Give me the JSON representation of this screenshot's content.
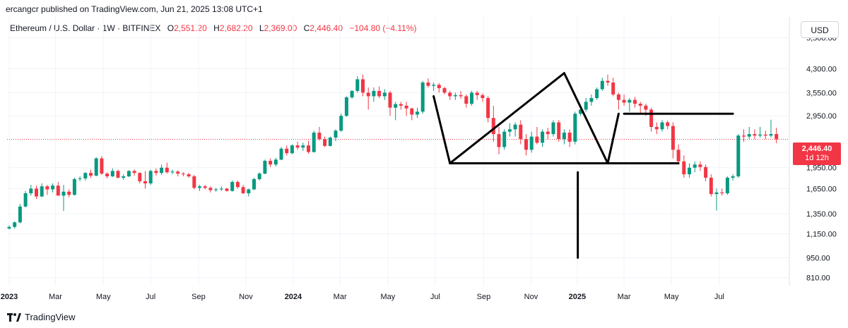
{
  "header": {
    "publisher_text": "ercangcr published on TradingView.com, Jun 21, 2025 13:08 UTC+1"
  },
  "legend": {
    "symbol": "Ethereum / U.S. Dollar · 1W · BITFINEX",
    "o_label": "O",
    "o_value": "2,551.20",
    "h_label": "H",
    "h_value": "2,682.20",
    "l_label": "L",
    "l_value": "2,369.00",
    "c_label": "C",
    "c_value": "2,446.40",
    "change": "−104.80 (−4.11%)"
  },
  "price_scale": {
    "currency": "USD",
    "last_price": "2,446.40",
    "countdown": "1d 12h"
  },
  "brand": {
    "name": "TradingView"
  },
  "colors": {
    "up": "#089981",
    "down": "#f23645",
    "drawing": "#000000",
    "grid": "#f0f3fa"
  },
  "chart_data": {
    "type": "candlestick",
    "scale": "log",
    "ylim": [
      760,
      6500
    ],
    "y_ticks": [
      {
        "value": 5500,
        "label": "5,500.00"
      },
      {
        "value": 4300,
        "label": "4,300.00"
      },
      {
        "value": 3550,
        "label": "3,550.00"
      },
      {
        "value": 2950,
        "label": "2,950.00"
      },
      {
        "value": 1950,
        "label": "1,950.00"
      },
      {
        "value": 1650,
        "label": "1,650.00"
      },
      {
        "value": 1350,
        "label": "1,350.00"
      },
      {
        "value": 1150,
        "label": "1,150.00"
      },
      {
        "value": 950,
        "label": "950.00"
      },
      {
        "value": 810,
        "label": "810.00"
      }
    ],
    "x_ticks": [
      {
        "label": "2023",
        "bold": true,
        "week": 0
      },
      {
        "label": "Mar",
        "bold": false,
        "week": 8.5
      },
      {
        "label": "May",
        "bold": false,
        "week": 17.3
      },
      {
        "label": "Jul",
        "bold": false,
        "week": 26
      },
      {
        "label": "Sep",
        "bold": false,
        "week": 34.8
      },
      {
        "label": "Nov",
        "bold": false,
        "week": 43.5
      },
      {
        "label": "2024",
        "bold": true,
        "week": 52.2
      },
      {
        "label": "Mar",
        "bold": false,
        "week": 60.8
      },
      {
        "label": "May",
        "bold": false,
        "week": 69.6
      },
      {
        "label": "Jul",
        "bold": false,
        "week": 78.3
      },
      {
        "label": "Sep",
        "bold": false,
        "week": 87.2
      },
      {
        "label": "Nov",
        "bold": false,
        "week": 95.9
      },
      {
        "label": "2025",
        "bold": true,
        "week": 104.4
      },
      {
        "label": "Mar",
        "bold": false,
        "week": 113
      },
      {
        "label": "May",
        "bold": false,
        "week": 121.7
      },
      {
        "label": "Jul",
        "bold": false,
        "week": 130.5
      }
    ],
    "last_price": 2446.4,
    "candles": [
      {
        "o": 1200,
        "h": 1230,
        "l": 1190,
        "c": 1215
      },
      {
        "o": 1215,
        "h": 1270,
        "l": 1200,
        "c": 1260
      },
      {
        "o": 1260,
        "h": 1460,
        "l": 1250,
        "c": 1430
      },
      {
        "o": 1430,
        "h": 1620,
        "l": 1420,
        "c": 1590
      },
      {
        "o": 1590,
        "h": 1700,
        "l": 1560,
        "c": 1650
      },
      {
        "o": 1650,
        "h": 1690,
        "l": 1520,
        "c": 1550
      },
      {
        "o": 1550,
        "h": 1720,
        "l": 1540,
        "c": 1680
      },
      {
        "o": 1680,
        "h": 1700,
        "l": 1570,
        "c": 1640
      },
      {
        "o": 1640,
        "h": 1720,
        "l": 1600,
        "c": 1690
      },
      {
        "o": 1690,
        "h": 1740,
        "l": 1560,
        "c": 1560
      },
      {
        "o": 1560,
        "h": 1700,
        "l": 1380,
        "c": 1610
      },
      {
        "o": 1610,
        "h": 1640,
        "l": 1540,
        "c": 1570
      },
      {
        "o": 1570,
        "h": 1800,
        "l": 1560,
        "c": 1780
      },
      {
        "o": 1780,
        "h": 1820,
        "l": 1750,
        "c": 1790
      },
      {
        "o": 1790,
        "h": 1880,
        "l": 1760,
        "c": 1870
      },
      {
        "o": 1870,
        "h": 1920,
        "l": 1800,
        "c": 1830
      },
      {
        "o": 1830,
        "h": 2120,
        "l": 1820,
        "c": 2100
      },
      {
        "o": 2100,
        "h": 2140,
        "l": 1840,
        "c": 1860
      },
      {
        "o": 1860,
        "h": 1880,
        "l": 1790,
        "c": 1820
      },
      {
        "o": 1820,
        "h": 1940,
        "l": 1810,
        "c": 1900
      },
      {
        "o": 1900,
        "h": 1920,
        "l": 1790,
        "c": 1800
      },
      {
        "o": 1800,
        "h": 1850,
        "l": 1770,
        "c": 1820
      },
      {
        "o": 1820,
        "h": 1910,
        "l": 1810,
        "c": 1900
      },
      {
        "o": 1900,
        "h": 1920,
        "l": 1830,
        "c": 1870
      },
      {
        "o": 1870,
        "h": 1880,
        "l": 1720,
        "c": 1750
      },
      {
        "o": 1750,
        "h": 1900,
        "l": 1650,
        "c": 1720
      },
      {
        "o": 1720,
        "h": 1920,
        "l": 1700,
        "c": 1900
      },
      {
        "o": 1900,
        "h": 1940,
        "l": 1830,
        "c": 1870
      },
      {
        "o": 1870,
        "h": 2000,
        "l": 1840,
        "c": 1950
      },
      {
        "o": 1950,
        "h": 2030,
        "l": 1860,
        "c": 1880
      },
      {
        "o": 1880,
        "h": 1920,
        "l": 1850,
        "c": 1890
      },
      {
        "o": 1890,
        "h": 1910,
        "l": 1820,
        "c": 1860
      },
      {
        "o": 1860,
        "h": 1880,
        "l": 1820,
        "c": 1850
      },
      {
        "o": 1850,
        "h": 1870,
        "l": 1800,
        "c": 1820
      },
      {
        "o": 1820,
        "h": 1840,
        "l": 1640,
        "c": 1660
      },
      {
        "o": 1660,
        "h": 1700,
        "l": 1620,
        "c": 1680
      },
      {
        "o": 1680,
        "h": 1700,
        "l": 1640,
        "c": 1660
      },
      {
        "o": 1660,
        "h": 1680,
        "l": 1600,
        "c": 1630
      },
      {
        "o": 1630,
        "h": 1660,
        "l": 1610,
        "c": 1640
      },
      {
        "o": 1640,
        "h": 1680,
        "l": 1620,
        "c": 1650
      },
      {
        "o": 1650,
        "h": 1660,
        "l": 1610,
        "c": 1620
      },
      {
        "o": 1620,
        "h": 1760,
        "l": 1610,
        "c": 1740
      },
      {
        "o": 1740,
        "h": 1760,
        "l": 1650,
        "c": 1670
      },
      {
        "o": 1670,
        "h": 1700,
        "l": 1580,
        "c": 1590
      },
      {
        "o": 1590,
        "h": 1650,
        "l": 1550,
        "c": 1640
      },
      {
        "o": 1640,
        "h": 1800,
        "l": 1630,
        "c": 1780
      },
      {
        "o": 1780,
        "h": 1880,
        "l": 1760,
        "c": 1860
      },
      {
        "o": 1860,
        "h": 2080,
        "l": 1850,
        "c": 2060
      },
      {
        "o": 2060,
        "h": 2100,
        "l": 1960,
        "c": 2000
      },
      {
        "o": 2000,
        "h": 2110,
        "l": 1970,
        "c": 2080
      },
      {
        "o": 2080,
        "h": 2300,
        "l": 2070,
        "c": 2270
      },
      {
        "o": 2270,
        "h": 2330,
        "l": 2150,
        "c": 2190
      },
      {
        "o": 2190,
        "h": 2350,
        "l": 2170,
        "c": 2330
      },
      {
        "o": 2330,
        "h": 2400,
        "l": 2250,
        "c": 2290
      },
      {
        "o": 2290,
        "h": 2380,
        "l": 2230,
        "c": 2330
      },
      {
        "o": 2330,
        "h": 2420,
        "l": 2180,
        "c": 2210
      },
      {
        "o": 2210,
        "h": 2620,
        "l": 2200,
        "c": 2580
      },
      {
        "o": 2580,
        "h": 2700,
        "l": 2420,
        "c": 2450
      },
      {
        "o": 2450,
        "h": 2500,
        "l": 2300,
        "c": 2320
      },
      {
        "o": 2320,
        "h": 2500,
        "l": 2310,
        "c": 2480
      },
      {
        "o": 2480,
        "h": 2650,
        "l": 2410,
        "c": 2620
      },
      {
        "o": 2620,
        "h": 3000,
        "l": 2600,
        "c": 2950
      },
      {
        "o": 2950,
        "h": 3450,
        "l": 2930,
        "c": 3420
      },
      {
        "o": 3420,
        "h": 3620,
        "l": 3380,
        "c": 3600
      },
      {
        "o": 3600,
        "h": 4050,
        "l": 3550,
        "c": 3950
      },
      {
        "o": 3950,
        "h": 4100,
        "l": 3450,
        "c": 3550
      },
      {
        "o": 3550,
        "h": 3700,
        "l": 3100,
        "c": 3450
      },
      {
        "o": 3450,
        "h": 3700,
        "l": 3300,
        "c": 3600
      },
      {
        "o": 3600,
        "h": 3730,
        "l": 3400,
        "c": 3450
      },
      {
        "o": 3450,
        "h": 3650,
        "l": 3350,
        "c": 3550
      },
      {
        "o": 3550,
        "h": 3600,
        "l": 2950,
        "c": 3150
      },
      {
        "o": 3150,
        "h": 3300,
        "l": 2850,
        "c": 3240
      },
      {
        "o": 3240,
        "h": 3300,
        "l": 3100,
        "c": 3200
      },
      {
        "o": 3200,
        "h": 3300,
        "l": 2950,
        "c": 3130
      },
      {
        "o": 3130,
        "h": 3150,
        "l": 2850,
        "c": 2980
      },
      {
        "o": 2980,
        "h": 3150,
        "l": 2900,
        "c": 3050
      },
      {
        "o": 3050,
        "h": 3900,
        "l": 3000,
        "c": 3850
      },
      {
        "o": 3850,
        "h": 3980,
        "l": 3700,
        "c": 3750
      },
      {
        "o": 3750,
        "h": 3850,
        "l": 3600,
        "c": 3780
      },
      {
        "o": 3780,
        "h": 3830,
        "l": 3550,
        "c": 3680
      },
      {
        "o": 3680,
        "h": 3720,
        "l": 3500,
        "c": 3550
      },
      {
        "o": 3550,
        "h": 3600,
        "l": 3350,
        "c": 3450
      },
      {
        "o": 3450,
        "h": 3550,
        "l": 3350,
        "c": 3480
      },
      {
        "o": 3480,
        "h": 3600,
        "l": 3380,
        "c": 3450
      },
      {
        "o": 3450,
        "h": 3500,
        "l": 3150,
        "c": 3250
      },
      {
        "o": 3250,
        "h": 3600,
        "l": 3200,
        "c": 3550
      },
      {
        "o": 3550,
        "h": 3600,
        "l": 3350,
        "c": 3480
      },
      {
        "o": 3480,
        "h": 3530,
        "l": 3300,
        "c": 3400
      },
      {
        "o": 3400,
        "h": 3450,
        "l": 2800,
        "c": 2900
      },
      {
        "o": 2900,
        "h": 3200,
        "l": 2400,
        "c": 2550
      },
      {
        "o": 2550,
        "h": 2700,
        "l": 2170,
        "c": 2300
      },
      {
        "o": 2300,
        "h": 2650,
        "l": 2250,
        "c": 2600
      },
      {
        "o": 2600,
        "h": 2780,
        "l": 2500,
        "c": 2650
      },
      {
        "o": 2650,
        "h": 2800,
        "l": 2500,
        "c": 2750
      },
      {
        "o": 2750,
        "h": 2850,
        "l": 2350,
        "c": 2450
      },
      {
        "o": 2450,
        "h": 2550,
        "l": 2150,
        "c": 2250
      },
      {
        "o": 2250,
        "h": 2600,
        "l": 2200,
        "c": 2500
      },
      {
        "o": 2500,
        "h": 2700,
        "l": 2350,
        "c": 2380
      },
      {
        "o": 2380,
        "h": 2650,
        "l": 2300,
        "c": 2600
      },
      {
        "o": 2600,
        "h": 2680,
        "l": 2450,
        "c": 2550
      },
      {
        "o": 2550,
        "h": 2850,
        "l": 2500,
        "c": 2800
      },
      {
        "o": 2800,
        "h": 2850,
        "l": 2400,
        "c": 2450
      },
      {
        "o": 2450,
        "h": 2650,
        "l": 2350,
        "c": 2580
      },
      {
        "o": 2580,
        "h": 2650,
        "l": 2300,
        "c": 2400
      },
      {
        "o": 2400,
        "h": 3050,
        "l": 2350,
        "c": 3000
      },
      {
        "o": 3000,
        "h": 3150,
        "l": 2950,
        "c": 3100
      },
      {
        "o": 3100,
        "h": 3400,
        "l": 3050,
        "c": 3300
      },
      {
        "o": 3300,
        "h": 3500,
        "l": 3200,
        "c": 3400
      },
      {
        "o": 3400,
        "h": 3700,
        "l": 3350,
        "c": 3650
      },
      {
        "o": 3650,
        "h": 4000,
        "l": 3600,
        "c": 3900
      },
      {
        "o": 3900,
        "h": 4100,
        "l": 3750,
        "c": 3850
      },
      {
        "o": 3850,
        "h": 4000,
        "l": 3450,
        "c": 3500
      },
      {
        "o": 3500,
        "h": 3550,
        "l": 3100,
        "c": 3350
      },
      {
        "o": 3350,
        "h": 3500,
        "l": 3200,
        "c": 3280
      },
      {
        "o": 3280,
        "h": 3400,
        "l": 3050,
        "c": 3350
      },
      {
        "o": 3350,
        "h": 3430,
        "l": 3150,
        "c": 3250
      },
      {
        "o": 3250,
        "h": 3300,
        "l": 3000,
        "c": 3200
      },
      {
        "o": 3200,
        "h": 3250,
        "l": 2950,
        "c": 3100
      },
      {
        "o": 3100,
        "h": 3150,
        "l": 2600,
        "c": 2700
      },
      {
        "o": 2700,
        "h": 2800,
        "l": 2550,
        "c": 2650
      },
      {
        "o": 2650,
        "h": 2850,
        "l": 2600,
        "c": 2800
      },
      {
        "o": 2800,
        "h": 2840,
        "l": 2650,
        "c": 2720
      },
      {
        "o": 2720,
        "h": 2800,
        "l": 2100,
        "c": 2250
      },
      {
        "o": 2250,
        "h": 2350,
        "l": 2000,
        "c": 2050
      },
      {
        "o": 2050,
        "h": 2150,
        "l": 1800,
        "c": 1850
      },
      {
        "o": 1850,
        "h": 2020,
        "l": 1800,
        "c": 1950
      },
      {
        "o": 1950,
        "h": 2050,
        "l": 1880,
        "c": 2000
      },
      {
        "o": 2000,
        "h": 2050,
        "l": 1900,
        "c": 1960
      },
      {
        "o": 1960,
        "h": 2000,
        "l": 1750,
        "c": 1800
      },
      {
        "o": 1800,
        "h": 1850,
        "l": 1550,
        "c": 1580
      },
      {
        "o": 1580,
        "h": 1650,
        "l": 1385,
        "c": 1600
      },
      {
        "o": 1600,
        "h": 1650,
        "l": 1560,
        "c": 1590
      },
      {
        "o": 1590,
        "h": 1820,
        "l": 1570,
        "c": 1800
      },
      {
        "o": 1800,
        "h": 1850,
        "l": 1760,
        "c": 1820
      },
      {
        "o": 1820,
        "h": 2550,
        "l": 1800,
        "c": 2520
      },
      {
        "o": 2520,
        "h": 2650,
        "l": 2400,
        "c": 2500
      },
      {
        "o": 2500,
        "h": 2700,
        "l": 2450,
        "c": 2550
      },
      {
        "o": 2550,
        "h": 2650,
        "l": 2450,
        "c": 2520
      },
      {
        "o": 2520,
        "h": 2700,
        "l": 2480,
        "c": 2540
      },
      {
        "o": 2540,
        "h": 2620,
        "l": 2450,
        "c": 2520
      },
      {
        "o": 2520,
        "h": 2860,
        "l": 2480,
        "c": 2551.2
      },
      {
        "o": 2551.2,
        "h": 2682.2,
        "l": 2369,
        "c": 2446.4
      }
    ],
    "drawings": [
      {
        "type": "line",
        "points": [
          [
            78,
            3450
          ],
          [
            81,
            2020
          ]
        ]
      },
      {
        "type": "line",
        "points": [
          [
            81,
            2020
          ],
          [
            102,
            4150
          ]
        ]
      },
      {
        "type": "line",
        "points": [
          [
            102,
            4150
          ],
          [
            110,
            2020
          ]
        ]
      },
      {
        "type": "line",
        "points": [
          [
            110,
            2020
          ],
          [
            112,
            3000
          ]
        ]
      },
      {
        "type": "line",
        "points": [
          [
            81,
            2020
          ],
          [
            123,
            2020
          ]
        ]
      },
      {
        "type": "line",
        "points": [
          [
            113,
            3000
          ],
          [
            133,
            3000
          ]
        ]
      },
      {
        "type": "line",
        "points": [
          [
            104.5,
            1880
          ],
          [
            104.5,
            950
          ]
        ]
      }
    ]
  }
}
